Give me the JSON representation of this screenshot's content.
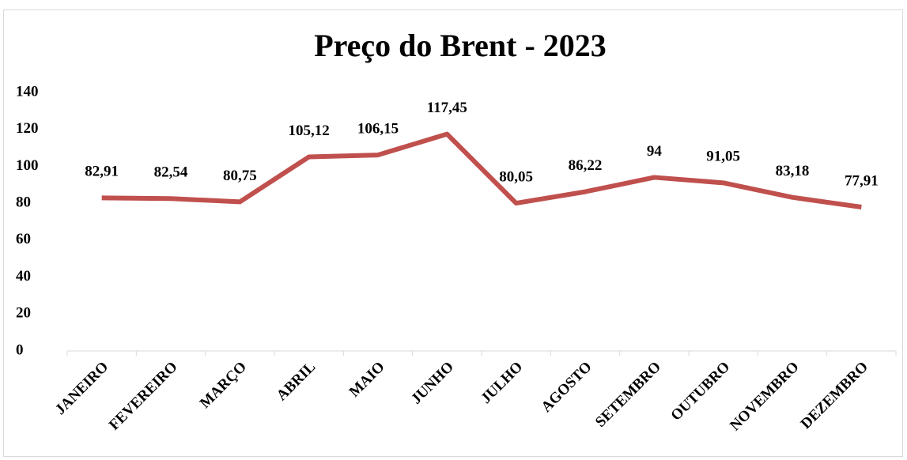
{
  "chart_data": {
    "type": "line",
    "title": "Preço do Brent - 2023",
    "categories": [
      "JANEIRO",
      "FEVEREIRO",
      "MARÇO",
      "ABRIL",
      "MAIO",
      "JUNHO",
      "JULHO",
      "AGOSTO",
      "SETEMBRO",
      "OUTUBRO",
      "NOVEMBRO",
      "DEZEMBRO"
    ],
    "values": [
      82.91,
      82.54,
      80.75,
      105.12,
      106.15,
      117.45,
      80.05,
      86.22,
      94,
      91.05,
      83.18,
      77.91
    ],
    "value_labels": [
      "82,91",
      "82,54",
      "80,75",
      "105,12",
      "106,15",
      "117,45",
      "80,05",
      "86,22",
      "94",
      "91,05",
      "83,18",
      "77,91"
    ],
    "color": "#c0504d",
    "ylim": [
      0,
      140
    ],
    "yticks": [
      0,
      20,
      40,
      60,
      80,
      100,
      120,
      140
    ],
    "grid": false
  }
}
